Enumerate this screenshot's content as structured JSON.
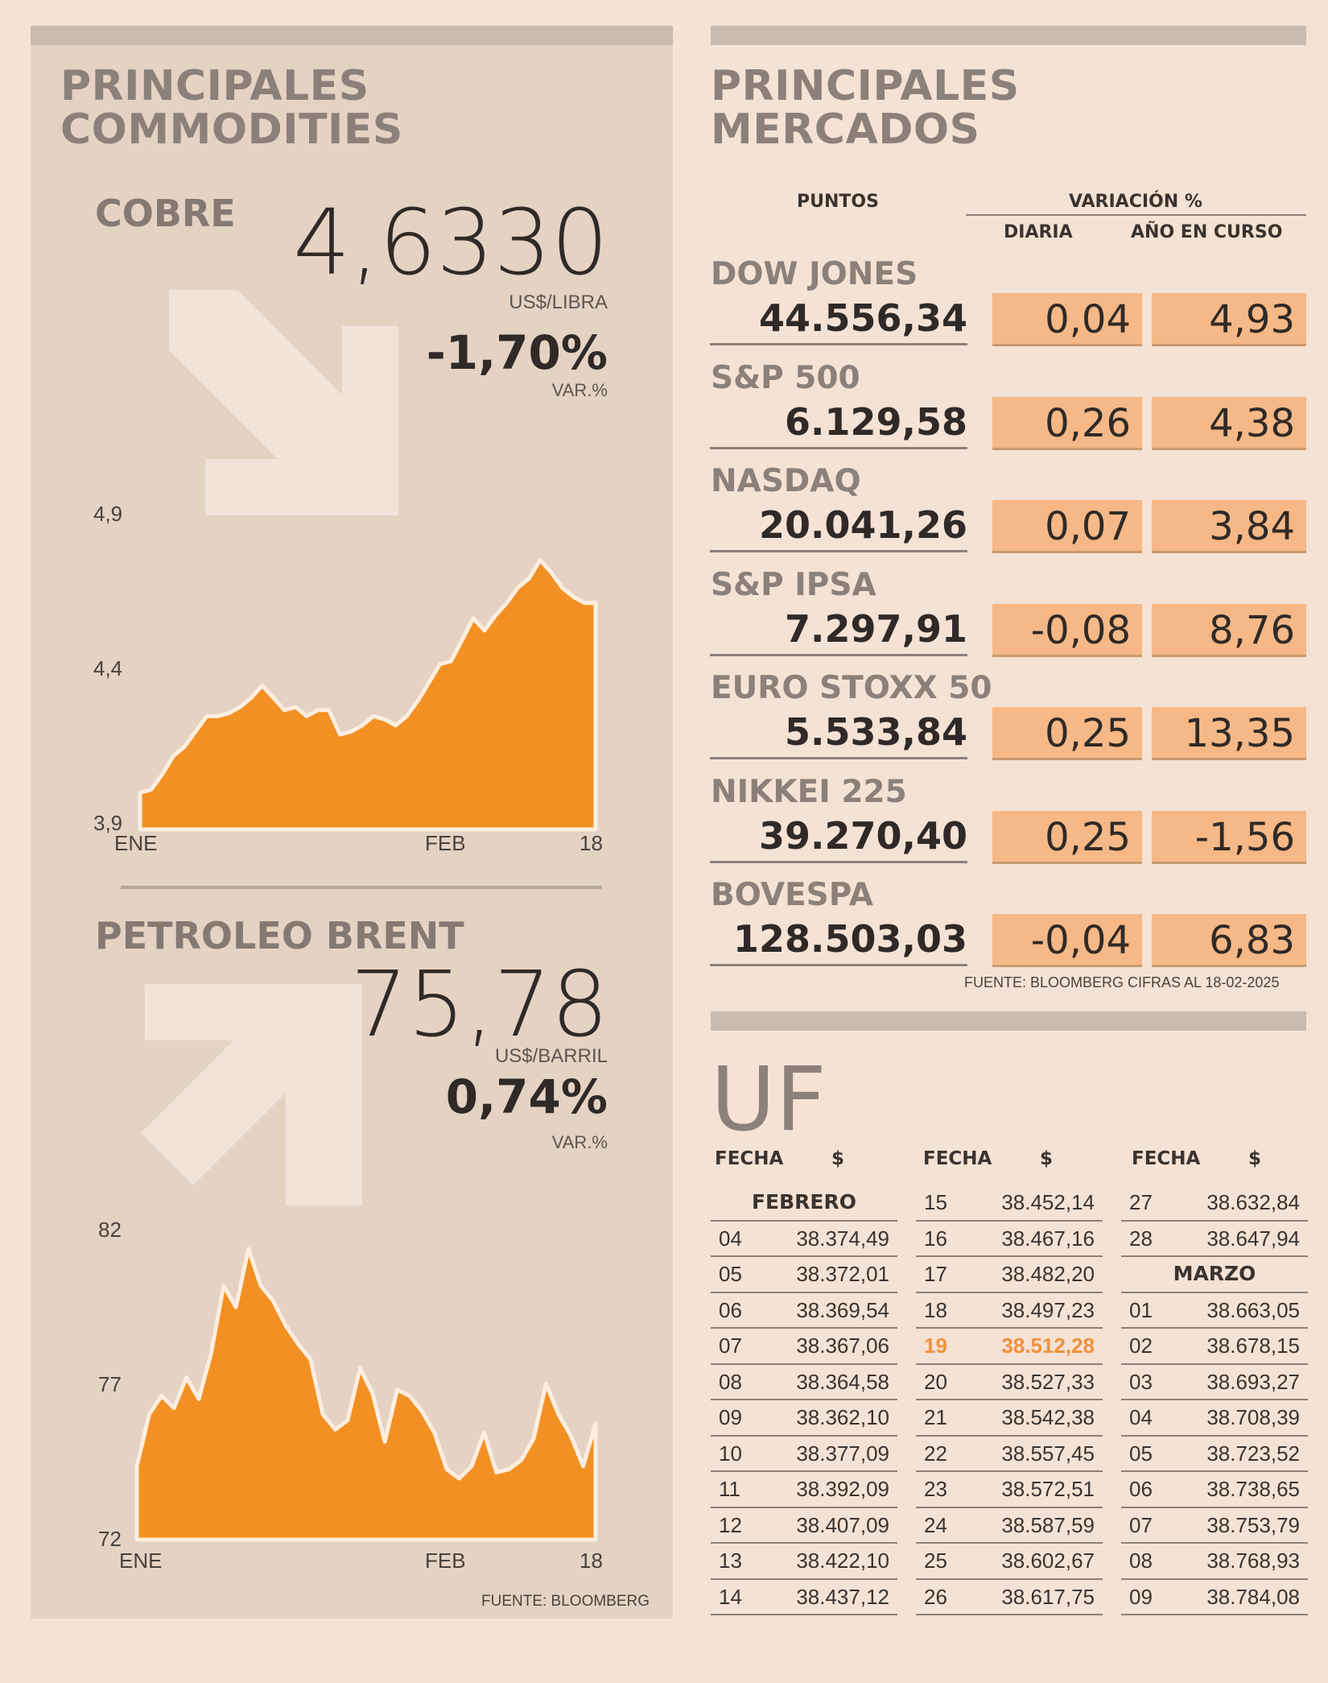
{
  "commodities": {
    "title_line1": "PRINCIPALES",
    "title_line2": "COMMODITIES",
    "source": "FUENTE: BLOOMBERG",
    "cobre": {
      "name": "COBRE",
      "price": "4,6330",
      "unit": "US$/LIBRA",
      "variation": "-1,70%",
      "variation_label": "VAR.%",
      "trend": "down"
    },
    "brent": {
      "name": "PETROLEO BRENT",
      "price": "75,78",
      "unit": "US$/BARRIL",
      "variation": "0,74%",
      "variation_label": "VAR.%",
      "trend": "up"
    }
  },
  "chart_data": [
    {
      "type": "area",
      "series": "COBRE",
      "color": "#f39023",
      "ylim": [
        3.9,
        4.9
      ],
      "yticks": [
        "4,9",
        "4,4",
        "3,9"
      ],
      "ytick_values": [
        4.9,
        4.4,
        3.9
      ],
      "xticks": [
        "ENE",
        "FEB",
        "18"
      ],
      "xtick_index": [
        0,
        37,
        47
      ],
      "values": [
        4.02,
        4.03,
        4.08,
        4.14,
        4.17,
        4.22,
        4.27,
        4.27,
        4.28,
        4.3,
        4.33,
        4.37,
        4.33,
        4.29,
        4.3,
        4.27,
        4.29,
        4.29,
        4.21,
        4.22,
        4.24,
        4.27,
        4.26,
        4.24,
        4.27,
        4.32,
        4.38,
        4.44,
        4.45,
        4.52,
        4.59,
        4.55,
        4.6,
        4.64,
        4.69,
        4.72,
        4.78,
        4.74,
        4.69,
        4.66,
        4.64,
        4.64
      ]
    },
    {
      "type": "area",
      "series": "PETROLEO BRENT",
      "color": "#f39023",
      "ylim": [
        72,
        82
      ],
      "yticks": [
        "82",
        "77",
        "72"
      ],
      "ytick_values": [
        82,
        77,
        72
      ],
      "xticks": [
        "ENE",
        "FEB",
        "18"
      ],
      "xtick_index": [
        0,
        37,
        47
      ],
      "values": [
        74.4,
        76.1,
        76.7,
        76.3,
        77.3,
        76.6,
        78.1,
        80.3,
        79.6,
        81.5,
        80.3,
        79.8,
        79.0,
        78.4,
        77.9,
        76.1,
        75.6,
        75.9,
        77.6,
        76.8,
        75.2,
        76.9,
        76.7,
        76.2,
        75.5,
        74.3,
        74.0,
        74.4,
        75.5,
        74.2,
        74.3,
        74.6,
        75.3,
        77.1,
        76.1,
        75.4,
        74.4,
        75.8
      ]
    }
  ],
  "markets": {
    "title_line1": "PRINCIPALES",
    "title_line2": "MERCADOS",
    "col_points": "PUNTOS",
    "col_variation": "VARIACIÓN %",
    "col_daily": "DIARIA",
    "col_ytd": "AÑO EN CURSO",
    "source": "FUENTE: BLOOMBERG CIFRAS AL 18-02-2025",
    "rows": [
      {
        "name": "DOW JONES",
        "points": "44.556,34",
        "daily": "0,04",
        "ytd": "4,93"
      },
      {
        "name": "S&P 500",
        "points": "6.129,58",
        "daily": "0,26",
        "ytd": "4,38"
      },
      {
        "name": "NASDAQ",
        "points": "20.041,26",
        "daily": "0,07",
        "ytd": "3,84"
      },
      {
        "name": "S&P IPSA",
        "points": "7.297,91",
        "daily": "-0,08",
        "ytd": "8,76"
      },
      {
        "name": "EURO STOXX 50",
        "points": "5.533,84",
        "daily": "0,25",
        "ytd": "13,35"
      },
      {
        "name": "NIKKEI 225",
        "points": "39.270,40",
        "daily": "0,25",
        "ytd": "-1,56"
      },
      {
        "name": "BOVESPA",
        "points": "128.503,03",
        "daily": "-0,04",
        "ytd": "6,83"
      }
    ]
  },
  "uf": {
    "title": "UF",
    "col_date": "FECHA",
    "col_value": "$",
    "highlight_color": "#f0913a",
    "columns": [
      [
        {
          "month": "FEBRERO"
        },
        {
          "d": "04",
          "v": "38.374,49"
        },
        {
          "d": "05",
          "v": "38.372,01"
        },
        {
          "d": "06",
          "v": "38.369,54"
        },
        {
          "d": "07",
          "v": "38.367,06"
        },
        {
          "d": "08",
          "v": "38.364,58"
        },
        {
          "d": "09",
          "v": "38.362,10"
        },
        {
          "d": "10",
          "v": "38.377,09"
        },
        {
          "d": "11",
          "v": "38.392,09"
        },
        {
          "d": "12",
          "v": "38.407,09"
        },
        {
          "d": "13",
          "v": "38.422,10"
        },
        {
          "d": "14",
          "v": "38.437,12"
        }
      ],
      [
        {
          "d": "15",
          "v": "38.452,14"
        },
        {
          "d": "16",
          "v": "38.467,16"
        },
        {
          "d": "17",
          "v": "38.482,20"
        },
        {
          "d": "18",
          "v": "38.497,23"
        },
        {
          "d": "19",
          "v": "38.512,28",
          "highlight": true
        },
        {
          "d": "20",
          "v": "38.527,33"
        },
        {
          "d": "21",
          "v": "38.542,38"
        },
        {
          "d": "22",
          "v": "38.557,45"
        },
        {
          "d": "23",
          "v": "38.572,51"
        },
        {
          "d": "24",
          "v": "38.587,59"
        },
        {
          "d": "25",
          "v": "38.602,67"
        },
        {
          "d": "26",
          "v": "38.617,75"
        }
      ],
      [
        {
          "d": "27",
          "v": "38.632,84"
        },
        {
          "d": "28",
          "v": "38.647,94"
        },
        {
          "month": "MARZO"
        },
        {
          "d": "01",
          "v": "38.663,05"
        },
        {
          "d": "02",
          "v": "38.678,15"
        },
        {
          "d": "03",
          "v": "38.693,27"
        },
        {
          "d": "04",
          "v": "38.708,39"
        },
        {
          "d": "05",
          "v": "38.723,52"
        },
        {
          "d": "06",
          "v": "38.738,65"
        },
        {
          "d": "07",
          "v": "38.753,79"
        },
        {
          "d": "08",
          "v": "38.768,93"
        },
        {
          "d": "09",
          "v": "38.784,08"
        }
      ]
    ]
  }
}
